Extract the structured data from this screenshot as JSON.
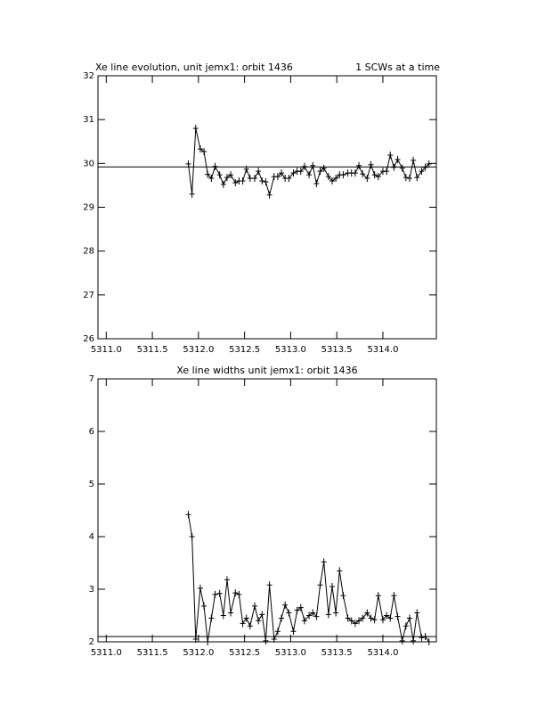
{
  "chart_data": [
    {
      "type": "line",
      "title": "Xe line evolution, unit jemx1: orbit 1436",
      "annotation": "1 SCWs at a time",
      "reference_line": 29.92,
      "xlim": [
        5310.91,
        5314.58
      ],
      "xticks": [
        {
          "value": 5311,
          "label": "5311.0"
        },
        {
          "value": 5311.5,
          "label": "5311.5"
        },
        {
          "value": 5312,
          "label": "5312.0"
        },
        {
          "value": 5312.5,
          "label": "5312.5"
        },
        {
          "value": 5313,
          "label": "5313.0"
        },
        {
          "value": 5313.5,
          "label": "5313.5"
        },
        {
          "value": 5314,
          "label": "5314.0"
        }
      ],
      "ylim": [
        26,
        32
      ],
      "yticks": [
        26,
        27,
        28,
        29,
        30,
        31,
        32
      ],
      "color": "#000000",
      "x": [
        5311.89,
        5311.93,
        5311.97,
        5312.02,
        5312.06,
        5312.1,
        5312.14,
        5312.18,
        5312.23,
        5312.27,
        5312.31,
        5312.35,
        5312.4,
        5312.44,
        5312.48,
        5312.52,
        5312.56,
        5312.61,
        5312.65,
        5312.69,
        5312.73,
        5312.77,
        5312.82,
        5312.86,
        5312.9,
        5312.94,
        5312.98,
        5313.03,
        5313.07,
        5313.11,
        5313.15,
        5313.2,
        5313.24,
        5313.28,
        5313.32,
        5313.36,
        5313.41,
        5313.45,
        5313.49,
        5313.53,
        5313.57,
        5313.62,
        5313.66,
        5313.7,
        5313.74,
        5313.78,
        5313.83,
        5313.87,
        5313.91,
        5313.95,
        5314.0,
        5314.04,
        5314.08,
        5314.12,
        5314.16,
        5314.21,
        5314.25,
        5314.29,
        5314.33,
        5314.37,
        5314.42,
        5314.46,
        5314.5
      ],
      "values": [
        29.99,
        29.3,
        30.8,
        30.33,
        30.27,
        29.75,
        29.66,
        29.93,
        29.74,
        29.52,
        29.68,
        29.74,
        29.56,
        29.6,
        29.6,
        29.87,
        29.66,
        29.66,
        29.82,
        29.6,
        29.58,
        29.28,
        29.7,
        29.7,
        29.78,
        29.66,
        29.66,
        29.78,
        29.82,
        29.82,
        29.93,
        29.74,
        29.95,
        29.54,
        29.82,
        29.89,
        29.7,
        29.6,
        29.66,
        29.74,
        29.74,
        29.78,
        29.78,
        29.78,
        29.95,
        29.76,
        29.66,
        29.97,
        29.74,
        29.7,
        29.82,
        29.82,
        30.19,
        29.91,
        30.09,
        29.89,
        29.68,
        29.66,
        30.07,
        29.68,
        29.82,
        29.91,
        29.99
      ]
    },
    {
      "type": "line",
      "title": "Xe line widths unit jemx1: orbit 1436",
      "reference_line": 2.1,
      "xlim": [
        5310.91,
        5314.58
      ],
      "xticks": [
        {
          "value": 5311,
          "label": "5311.0"
        },
        {
          "value": 5311.5,
          "label": "5311.5"
        },
        {
          "value": 5312,
          "label": "5312.0"
        },
        {
          "value": 5312.5,
          "label": "5312.5"
        },
        {
          "value": 5313,
          "label": "5313.0"
        },
        {
          "value": 5313.5,
          "label": "5313.5"
        },
        {
          "value": 5314,
          "label": "5314.0"
        }
      ],
      "ylim": [
        2,
        7
      ],
      "yticks": [
        2,
        3,
        4,
        5,
        6,
        7
      ],
      "color": "#000000",
      "x": [
        5311.89,
        5311.93,
        5311.97,
        5312.02,
        5312.06,
        5312.1,
        5312.14,
        5312.18,
        5312.23,
        5312.27,
        5312.31,
        5312.35,
        5312.4,
        5312.44,
        5312.48,
        5312.52,
        5312.56,
        5312.61,
        5312.65,
        5312.69,
        5312.73,
        5312.77,
        5312.82,
        5312.86,
        5312.9,
        5312.94,
        5312.98,
        5313.03,
        5313.07,
        5313.11,
        5313.15,
        5313.2,
        5313.24,
        5313.28,
        5313.32,
        5313.36,
        5313.41,
        5313.45,
        5313.49,
        5313.53,
        5313.57,
        5313.62,
        5313.66,
        5313.7,
        5313.74,
        5313.78,
        5313.83,
        5313.87,
        5313.91,
        5313.95,
        5314.0,
        5314.04,
        5314.08,
        5314.12,
        5314.16,
        5314.21,
        5314.25,
        5314.29,
        5314.33,
        5314.37,
        5314.42,
        5314.46,
        5314.5
      ],
      "values": [
        4.42,
        4.0,
        2.05,
        3.02,
        2.68,
        2.0,
        2.45,
        2.9,
        2.92,
        2.5,
        3.18,
        2.55,
        2.93,
        2.9,
        2.35,
        2.45,
        2.3,
        2.68,
        2.4,
        2.52,
        2.02,
        3.08,
        2.05,
        2.2,
        2.45,
        2.7,
        2.55,
        2.2,
        2.6,
        2.65,
        2.4,
        2.5,
        2.55,
        2.48,
        3.08,
        3.52,
        2.52,
        3.05,
        2.55,
        3.35,
        2.88,
        2.45,
        2.4,
        2.35,
        2.4,
        2.45,
        2.55,
        2.45,
        2.42,
        2.88,
        2.42,
        2.5,
        2.45,
        2.88,
        2.48,
        2.02,
        2.3,
        2.45,
        2.02,
        2.55,
        2.08,
        2.1,
        2.0
      ]
    }
  ]
}
